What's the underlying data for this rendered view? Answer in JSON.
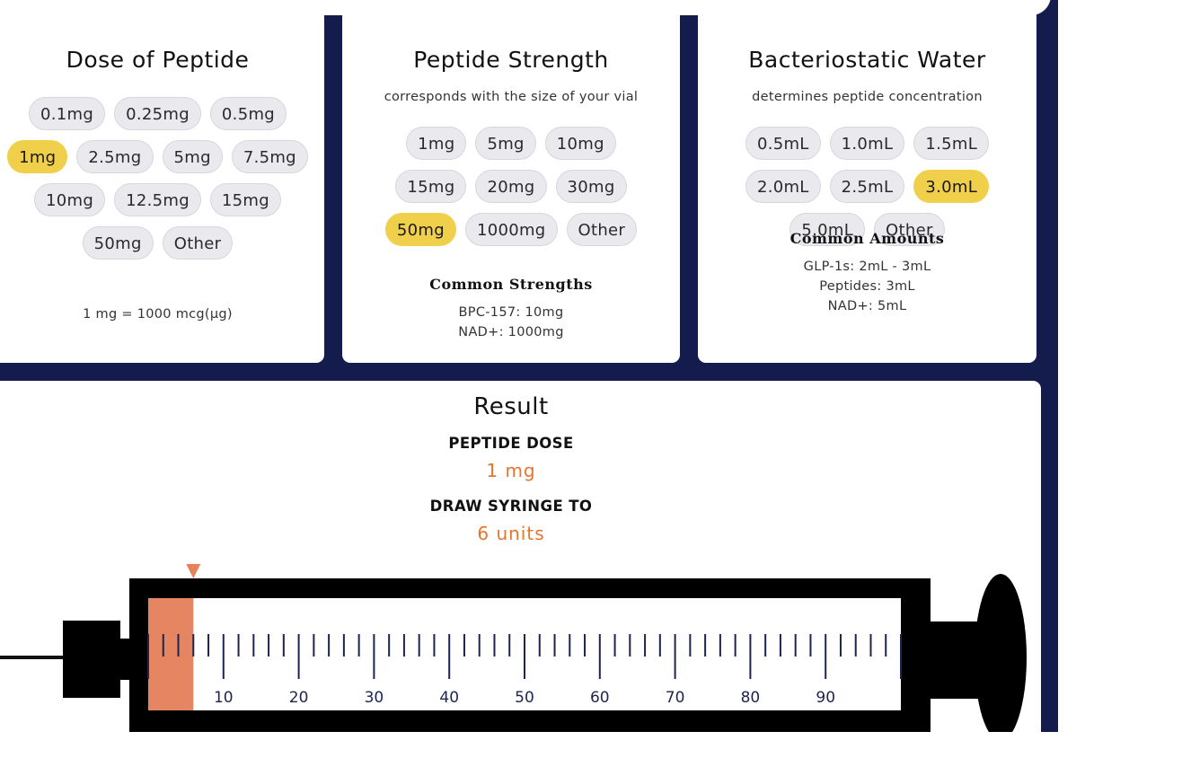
{
  "dose": {
    "title": "Dose of Peptide",
    "options": [
      "0.1mg",
      "0.25mg",
      "0.5mg",
      "1mg",
      "2.5mg",
      "5mg",
      "7.5mg",
      "10mg",
      "12.5mg",
      "15mg",
      "50mg",
      "Other"
    ],
    "selected": "1mg",
    "note": "1 mg = 1000 mcg(µg)"
  },
  "strength": {
    "title": "Peptide Strength",
    "subtitle": "corresponds with the size of your vial",
    "options": [
      "1mg",
      "5mg",
      "10mg",
      "15mg",
      "20mg",
      "30mg",
      "50mg",
      "1000mg",
      "Other"
    ],
    "selected": "50mg",
    "common_title": "Common Strengths",
    "common": [
      "BPC-157: 10mg",
      "NAD+: 1000mg"
    ]
  },
  "water": {
    "title": "Bacteriostatic Water",
    "subtitle": "determines peptide concentration",
    "options": [
      "0.5mL",
      "1.0mL",
      "1.5mL",
      "2.0mL",
      "2.5mL",
      "3.0mL",
      "5.0mL",
      "Other"
    ],
    "selected": "3.0mL",
    "common_title": "Common Amounts",
    "common": [
      "GLP-1s: 2mL - 3mL",
      "Peptides: 3mL",
      "NAD+: 5mL"
    ]
  },
  "result": {
    "title": "Result",
    "dose_label": "PEPTIDE DOSE",
    "dose_value": "1 mg",
    "draw_label": "DRAW SYRINGE TO",
    "draw_value": "6 units",
    "syringe": {
      "units": 6,
      "max_units": 100,
      "tick_labels": [
        "10",
        "20",
        "30",
        "40",
        "50",
        "60",
        "70",
        "80",
        "90"
      ],
      "fill_color": "#e58562",
      "marker_color": "#e8805a"
    }
  },
  "colors": {
    "background": "#141c4e",
    "selected_pill": "#f0d04a",
    "accent": "#e8742c"
  }
}
